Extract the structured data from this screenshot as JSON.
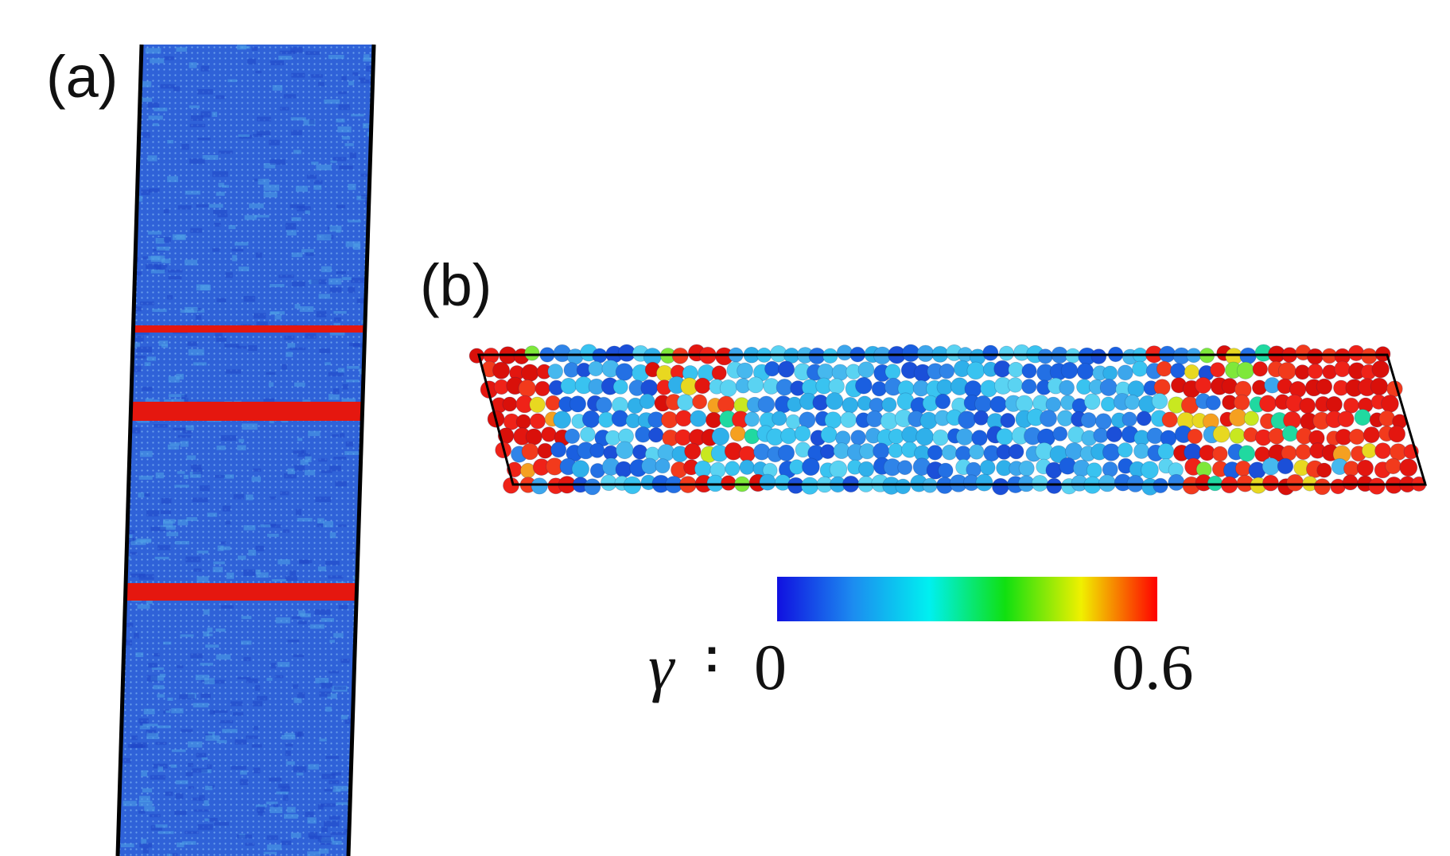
{
  "panels": {
    "a": {
      "label": "(a)"
    },
    "b": {
      "label": "(b)"
    }
  },
  "colorbar": {
    "symbol": "γ",
    "separator": ":",
    "min_label": "0",
    "max_label": "0.6",
    "colors": [
      "#1010e0",
      "#1c8cf0",
      "#00f0f0",
      "#10e010",
      "#f0f000",
      "#ff0000"
    ]
  },
  "colors": {
    "low_strain": "#2a5fd6",
    "high_strain": "#e5170f",
    "outline": "#000000"
  }
}
